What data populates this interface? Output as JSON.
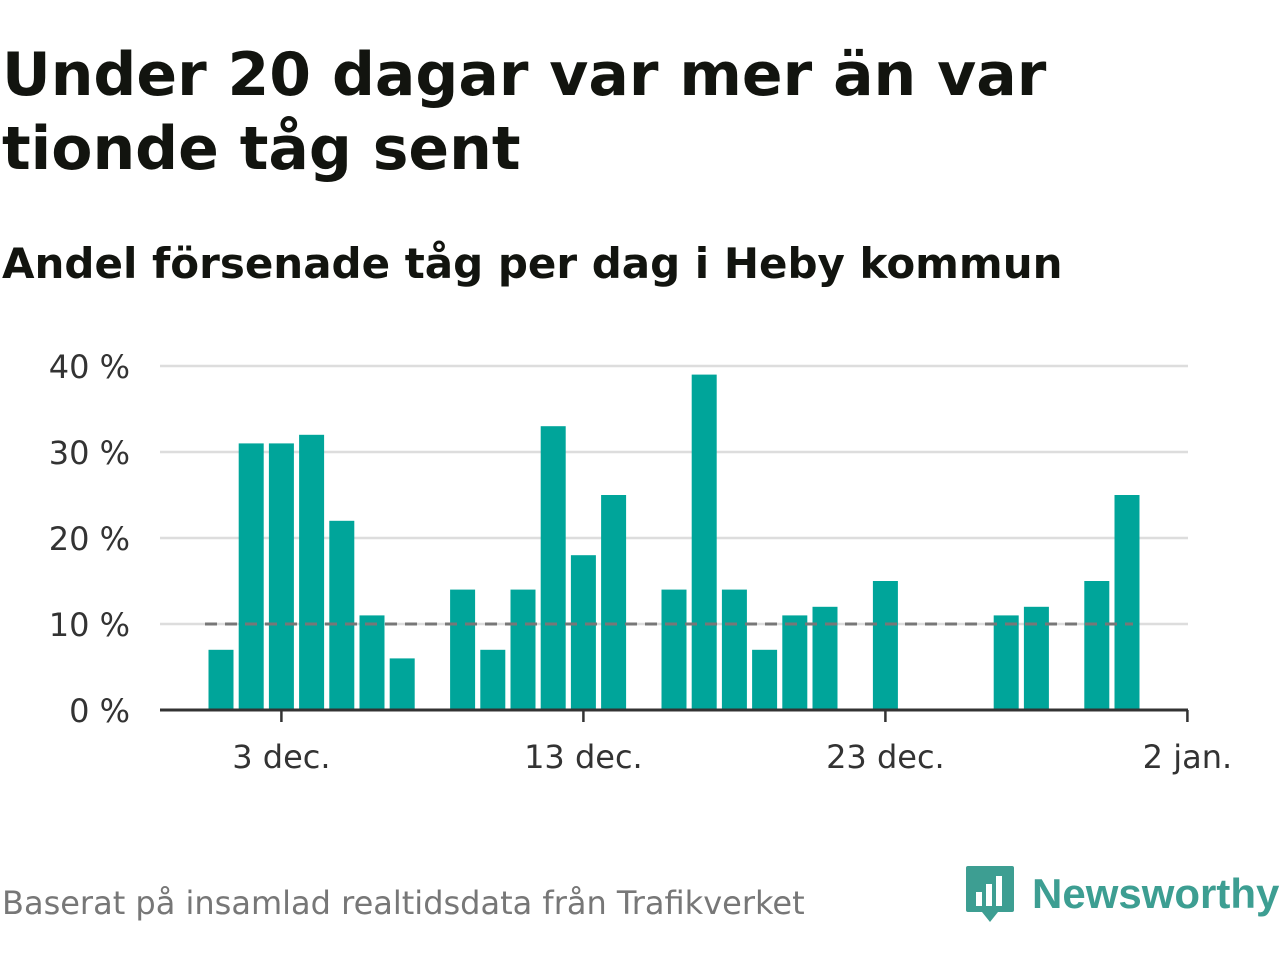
{
  "title": "Under 20 dagar var mer än var tionde tåg sent",
  "subtitle": "Andel försenade tåg per dag i Heby kommun",
  "source": "Baserat på insamlad realtidsdata från Trafikverket",
  "brand": {
    "name": "Newsworthy",
    "icon": "newsworthy-logo-icon"
  },
  "colors": {
    "bar": "#00a59a",
    "reference_line": "#777777",
    "grid": "#dddddd",
    "axis": "#333333",
    "brand": "#3d9e92"
  },
  "chart_data": {
    "type": "bar",
    "title": "Under 20 dagar var mer än var tionde tåg sent",
    "subtitle": "Andel försenade tåg per dag i Heby kommun",
    "x": [
      "1 dec.",
      "2 dec.",
      "3 dec.",
      "4 dec.",
      "5 dec.",
      "6 dec.",
      "7 dec.",
      "8 dec.",
      "9 dec.",
      "10 dec.",
      "11 dec.",
      "12 dec.",
      "13 dec.",
      "14 dec.",
      "15 dec.",
      "16 dec.",
      "17 dec.",
      "18 dec.",
      "19 dec.",
      "20 dec.",
      "21 dec.",
      "22 dec.",
      "23 dec.",
      "24 dec.",
      "25 dec.",
      "26 dec.",
      "27 dec.",
      "28 dec.",
      "29 dec.",
      "30 dec.",
      "31 dec."
    ],
    "values": [
      7,
      31,
      31,
      32,
      22,
      11,
      6,
      null,
      14,
      7,
      14,
      33,
      18,
      25,
      null,
      14,
      39,
      14,
      7,
      11,
      12,
      null,
      15,
      null,
      null,
      null,
      11,
      12,
      null,
      15,
      25
    ],
    "reference_line": 10,
    "ylim": [
      0,
      40
    ],
    "yticks": [
      0,
      10,
      20,
      30,
      40
    ],
    "ytick_labels": [
      "0 %",
      "10 %",
      "20 %",
      "30 %",
      "40 %"
    ],
    "xticks": [
      {
        "label": "3 dec.",
        "day": 3
      },
      {
        "label": "13 dec.",
        "day": 13
      },
      {
        "label": "23 dec.",
        "day": 23
      },
      {
        "label": "2 jan.",
        "day": 33
      }
    ],
    "grid": true,
    "legend": "none"
  }
}
